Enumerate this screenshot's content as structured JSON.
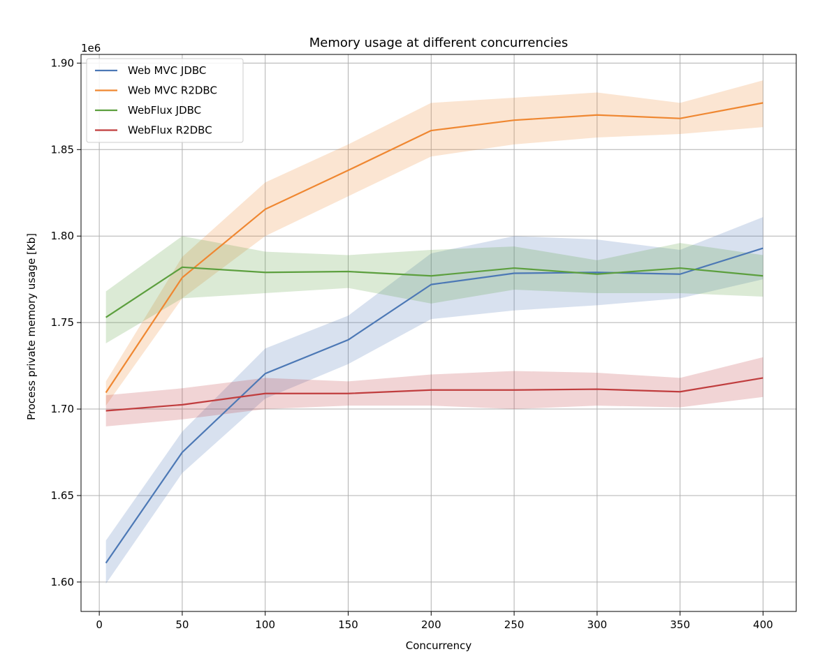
{
  "chart_data": {
    "type": "line",
    "title": "Memory usage at different concurrencies",
    "xlabel": "Concurrency",
    "ylabel": "Process private memory usage [Kb]",
    "y_offset_label": "1e6",
    "xlim": [
      -11,
      420
    ],
    "ylim": [
      1.583,
      1.905
    ],
    "x_ticks": [
      0,
      50,
      100,
      150,
      200,
      250,
      300,
      350,
      400
    ],
    "x_tick_labels": [
      "0",
      "50",
      "100",
      "150",
      "200",
      "250",
      "300",
      "350",
      "400"
    ],
    "y_ticks": [
      1.6,
      1.65,
      1.7,
      1.75,
      1.8,
      1.85,
      1.9
    ],
    "y_tick_labels": [
      "1.60",
      "1.65",
      "1.70",
      "1.75",
      "1.80",
      "1.85",
      "1.90"
    ],
    "grid": true,
    "legend_position": "upper-left",
    "x": [
      4,
      50,
      100,
      150,
      200,
      250,
      300,
      350,
      400
    ],
    "series": [
      {
        "name": "Web MVC JDBC",
        "color": "#4c78b5",
        "values": [
          1.611,
          1.675,
          1.7205,
          1.74,
          1.772,
          1.7785,
          1.779,
          1.778,
          1.793
        ],
        "band_lower": [
          1.599,
          1.663,
          1.706,
          1.726,
          1.752,
          1.757,
          1.76,
          1.764,
          1.775
        ],
        "band_upper": [
          1.624,
          1.687,
          1.735,
          1.754,
          1.79,
          1.8,
          1.798,
          1.792,
          1.811
        ]
      },
      {
        "name": "Web MVC R2DBC",
        "color": "#ef8731",
        "values": [
          1.7095,
          1.776,
          1.8155,
          1.838,
          1.861,
          1.867,
          1.87,
          1.868,
          1.877
        ],
        "band_lower": [
          1.702,
          1.764,
          1.8,
          1.823,
          1.846,
          1.853,
          1.857,
          1.859,
          1.863
        ],
        "band_upper": [
          1.716,
          1.788,
          1.831,
          1.853,
          1.877,
          1.88,
          1.883,
          1.877,
          1.89
        ]
      },
      {
        "name": "WebFlux JDBC",
        "color": "#5c9f3e",
        "values": [
          1.753,
          1.782,
          1.779,
          1.7795,
          1.777,
          1.7815,
          1.778,
          1.7815,
          1.777
        ],
        "band_lower": [
          1.738,
          1.764,
          1.767,
          1.77,
          1.761,
          1.769,
          1.767,
          1.767,
          1.765
        ],
        "band_upper": [
          1.768,
          1.8,
          1.791,
          1.789,
          1.792,
          1.794,
          1.786,
          1.796,
          1.789
        ]
      },
      {
        "name": "WebFlux R2DBC",
        "color": "#c03d3e",
        "values": [
          1.699,
          1.7025,
          1.709,
          1.709,
          1.711,
          1.711,
          1.7115,
          1.71,
          1.718
        ],
        "band_lower": [
          1.69,
          1.694,
          1.7,
          1.702,
          1.702,
          1.7,
          1.702,
          1.701,
          1.707
        ],
        "band_upper": [
          1.708,
          1.712,
          1.718,
          1.716,
          1.72,
          1.722,
          1.721,
          1.718,
          1.73
        ]
      }
    ]
  }
}
